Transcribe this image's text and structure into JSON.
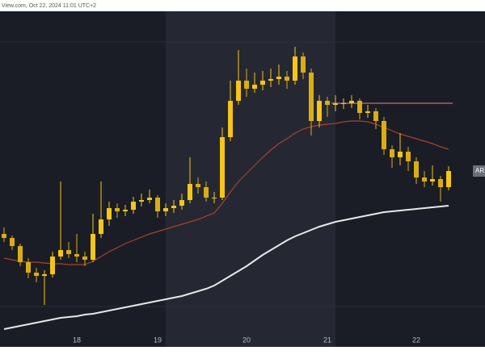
{
  "header": {
    "text": "View.com, Oct 22, 2024 11:01 UTC+2"
  },
  "chart_data": {
    "type": "candlestick",
    "categories": [
      null,
      null,
      null,
      null,
      null,
      null,
      null,
      null,
      null,
      "18",
      null,
      null,
      null,
      null,
      null,
      null,
      null,
      null,
      null,
      "19",
      null,
      null,
      null,
      null,
      null,
      null,
      null,
      null,
      null,
      null,
      "20",
      null,
      null,
      null,
      null,
      null,
      null,
      null,
      null,
      null,
      "21",
      null,
      null,
      null,
      null,
      null,
      null,
      null,
      null,
      null,
      null,
      "22",
      null,
      null,
      null,
      null
    ],
    "open": [
      140,
      135,
      125,
      105,
      92,
      88,
      90,
      112,
      120,
      115,
      112,
      108,
      140,
      158,
      172,
      168,
      170,
      180,
      182,
      185,
      168,
      172,
      175,
      182,
      202,
      198,
      185,
      185,
      260,
      305,
      330,
      320,
      325,
      330,
      332,
      335,
      330,
      360,
      340,
      280,
      305,
      300,
      302,
      302,
      305,
      290,
      292,
      280,
      245,
      235,
      242,
      230,
      210,
      205,
      208,
      198
    ],
    "high": [
      148,
      138,
      128,
      110,
      98,
      95,
      118,
      205,
      130,
      140,
      118,
      165,
      205,
      180,
      178,
      176,
      186,
      190,
      195,
      188,
      178,
      182,
      190,
      235,
      210,
      205,
      192,
      272,
      330,
      368,
      345,
      340,
      342,
      345,
      350,
      342,
      372,
      365,
      345,
      312,
      310,
      312,
      308,
      312,
      308,
      300,
      296,
      285,
      250,
      265,
      248,
      235,
      218,
      225,
      212,
      224
    ],
    "low": [
      130,
      120,
      100,
      85,
      80,
      52,
      86,
      108,
      110,
      105,
      100,
      105,
      135,
      150,
      160,
      162,
      165,
      174,
      178,
      160,
      162,
      166,
      170,
      178,
      190,
      180,
      178,
      182,
      255,
      300,
      310,
      315,
      318,
      322,
      325,
      320,
      325,
      332,
      262,
      272,
      285,
      292,
      295,
      296,
      282,
      284,
      270,
      238,
      222,
      225,
      218,
      202,
      198,
      200,
      180,
      194
    ],
    "close": [
      135,
      125,
      105,
      92,
      88,
      90,
      112,
      120,
      115,
      112,
      108,
      140,
      158,
      172,
      168,
      170,
      180,
      182,
      185,
      168,
      172,
      175,
      182,
      202,
      198,
      185,
      185,
      260,
      305,
      330,
      320,
      325,
      330,
      332,
      335,
      330,
      360,
      340,
      280,
      305,
      300,
      302,
      302,
      305,
      290,
      292,
      280,
      245,
      235,
      242,
      230,
      210,
      205,
      208,
      198,
      218
    ],
    "up_color": "#f5c518",
    "down_color": "#d9ad14",
    "lines": [
      {
        "color": "#a8432c",
        "values": [
          110,
          108,
          106,
          105,
          105,
          104,
          103,
          103,
          102,
          102,
          102,
          106,
          112,
          118,
          123,
          128,
          132,
          136,
          140,
          143,
          146,
          149,
          152,
          155,
          158,
          162,
          166,
          178,
          192,
          205,
          215,
          225,
          235,
          244,
          252,
          258,
          265,
          270,
          273,
          275,
          276,
          277,
          279,
          280,
          280,
          279,
          276,
          272,
          268,
          264,
          261,
          258,
          255,
          252,
          248,
          245
        ]
      },
      {
        "color": "#e8e8e8",
        "values": [
          22,
          24,
          26,
          28,
          30,
          32,
          34,
          36,
          37,
          38,
          40,
          41,
          43,
          45,
          47,
          49,
          51,
          53,
          55,
          57,
          59,
          61,
          63,
          66,
          69,
          72,
          76,
          82,
          88,
          94,
          100,
          107,
          114,
          120,
          126,
          132,
          137,
          141,
          145,
          149,
          152,
          155,
          157,
          159,
          161,
          163,
          165,
          167,
          168,
          169,
          170,
          171,
          172,
          173,
          174,
          175
        ]
      }
    ],
    "hline": {
      "value": 302,
      "color": "#c0707a"
    },
    "price_label": "AR",
    "ylim": [
      0,
      416
    ]
  }
}
